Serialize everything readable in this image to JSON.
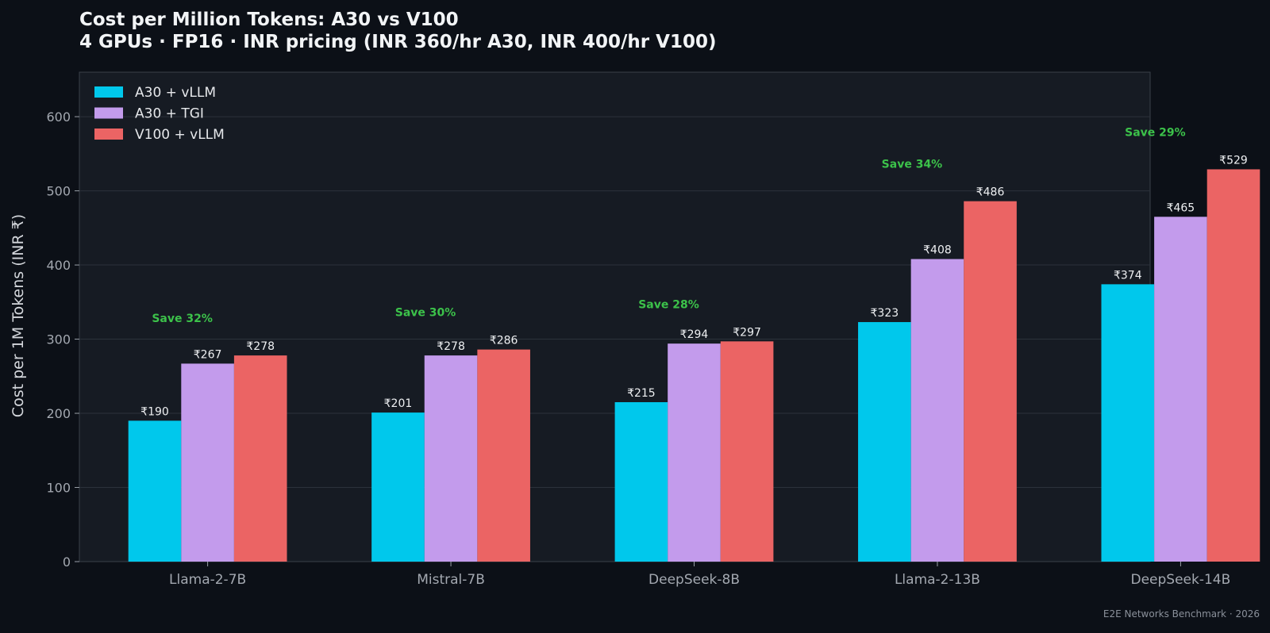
{
  "chart_data": {
    "type": "bar",
    "title": "Cost per Million Tokens: A30 vs V100",
    "subtitle": "4 GPUs · FP16 · INR pricing (INR 360/hr A30, INR 400/hr V100)",
    "xlabel": "",
    "ylabel": "Cost per 1M Tokens (INR ₹)",
    "ylim": [
      0,
      660
    ],
    "yticks": [
      0,
      100,
      200,
      300,
      400,
      500,
      600
    ],
    "grid": true,
    "legend_position": "top-left",
    "categories": [
      "Llama-2-7B",
      "Mistral-7B",
      "DeepSeek-8B",
      "Llama-2-13B",
      "DeepSeek-14B"
    ],
    "series": [
      {
        "name": "A30 + vLLM",
        "color": "#00c8ec",
        "values": [
          190,
          201,
          215,
          323,
          374
        ],
        "labels": [
          "₹190",
          "₹201",
          "₹215",
          "₹323",
          "₹374"
        ]
      },
      {
        "name": "A30 + TGI",
        "color": "#c39bec",
        "values": [
          267,
          278,
          294,
          408,
          465
        ],
        "labels": [
          "₹267",
          "₹278",
          "₹294",
          "₹408",
          "₹465"
        ]
      },
      {
        "name": "V100 + vLLM",
        "color": "#eb6464",
        "values": [
          278,
          286,
          297,
          486,
          529
        ],
        "labels": [
          "₹278",
          "₹286",
          "₹297",
          "₹486",
          "₹529"
        ]
      }
    ],
    "annotations": [
      "Save 32%",
      "Save 30%",
      "Save 28%",
      "Save 34%",
      "Save 29%"
    ],
    "annotation_color": "#3cc24a"
  },
  "footer": "E2E Networks Benchmark · 2026"
}
